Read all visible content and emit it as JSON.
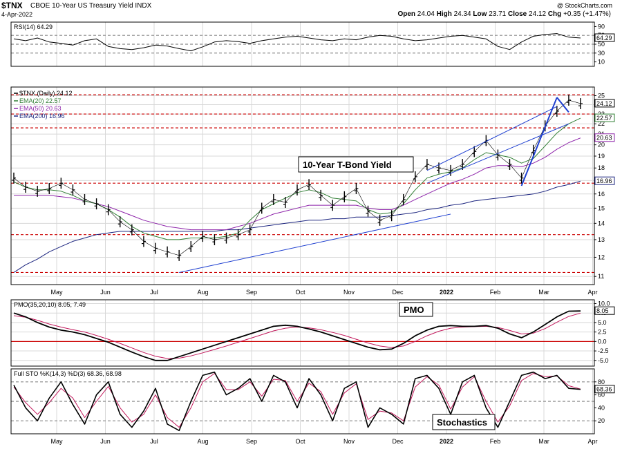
{
  "header": {
    "symbol": "$TNX",
    "name": "CBOE 10-Year US Treasury Yield INDX",
    "date": "4-Apr-2022",
    "copyright": "@ StockCharts.com",
    "open_label": "Open",
    "open": "24.04",
    "high_label": "High",
    "high": "24.34",
    "low_label": "Low",
    "low": "23.71",
    "close_label": "Close",
    "close": "24.12",
    "chg_label": "Chg",
    "chg": "+0.35 (+1.47%)"
  },
  "colors": {
    "rsi": "#000000",
    "price": "#000000",
    "ema20": "#2e7d32",
    "ema50": "#8e24aa",
    "ema200": "#1a237e",
    "trend": "#1e3fd0",
    "hline_red": "#cc0000",
    "pmo_signal": "#c2185b",
    "sto_d": "#c2185b",
    "grid": "#d8d8d8"
  },
  "chart_data": [
    {
      "type": "line",
      "name": "rsi_panel",
      "legend": "RSI(14) 64.29",
      "value_label": "64.29",
      "ylim": [
        0,
        100
      ],
      "yticks": [
        90,
        70,
        50,
        30,
        10
      ],
      "reference_lines": [
        70,
        50,
        30
      ],
      "series": [
        {
          "values": [
            62,
            58,
            64,
            55,
            52,
            48,
            58,
            62,
            45,
            40,
            38,
            42,
            48,
            46,
            40,
            35,
            44,
            55,
            58,
            56,
            52,
            58,
            62,
            66,
            68,
            64,
            60,
            58,
            62,
            60,
            66,
            70,
            68,
            62,
            58,
            60,
            64,
            68,
            70,
            66,
            62,
            45,
            38,
            55,
            68,
            72,
            74,
            66,
            64
          ]
        }
      ]
    },
    {
      "type": "line",
      "name": "price_panel",
      "title": "10-Year T-Bond Yield",
      "legend": [
        {
          "label": "$TNX (Daily) 24.12",
          "color": "#000000"
        },
        {
          "label": "EMA(20) 22.57",
          "color": "#2e7d32"
        },
        {
          "label": "EMA(50) 20.63",
          "color": "#8e24aa"
        },
        {
          "label": "EMA(200) 16.96",
          "color": "#1a237e"
        }
      ],
      "value_labels": [
        "24.12",
        "22.57",
        "20.63",
        "16.96"
      ],
      "ylim": [
        10.6,
        26
      ],
      "yticks": [
        25,
        24,
        23,
        22,
        21,
        20,
        19,
        18,
        17,
        16,
        15,
        14,
        13,
        12,
        11
      ],
      "y_scale": "log",
      "x_ticks": [
        "May",
        "Jun",
        "Jul",
        "Aug",
        "Sep",
        "Oct",
        "Nov",
        "Dec",
        "2022",
        "Feb",
        "Mar",
        "Apr"
      ],
      "horizontal_lines": [
        25.1,
        23.0,
        21.6,
        16.8,
        13.3,
        11.2
      ],
      "series": [
        {
          "name": "$TNX",
          "values": [
            17.2,
            16.5,
            16.2,
            16.4,
            16.8,
            16.3,
            15.6,
            15.3,
            14.9,
            14.1,
            13.6,
            12.9,
            12.5,
            12.3,
            12.1,
            12.6,
            13.2,
            13.0,
            13.1,
            13.3,
            13.6,
            15.0,
            15.6,
            15.4,
            16.3,
            16.7,
            15.9,
            15.2,
            15.8,
            16.4,
            14.8,
            14.2,
            14.5,
            15.6,
            17.3,
            18.3,
            18.0,
            17.8,
            18.3,
            19.4,
            20.4,
            19.1,
            18.3,
            17.2,
            19.5,
            21.8,
            23.3,
            24.5,
            24.12
          ]
        },
        {
          "name": "EMA(20)",
          "values": [
            16.9,
            16.5,
            16.3,
            16.3,
            16.2,
            15.9,
            15.5,
            15.3,
            14.9,
            14.4,
            13.8,
            13.4,
            13.2,
            13.0,
            13.0,
            13.1,
            13.1,
            13.1,
            13.2,
            13.4,
            14.2,
            14.9,
            15.3,
            15.7,
            16.1,
            16.3,
            16.1,
            15.7,
            15.6,
            15.5,
            14.9,
            14.6,
            14.7,
            15.3,
            16.3,
            17.2,
            17.5,
            17.7,
            18.0,
            18.7,
            19.3,
            19.1,
            18.9,
            18.4,
            18.8,
            19.9,
            21.1,
            22.0,
            22.57
          ]
        },
        {
          "name": "EMA(50)",
          "values": [
            15.9,
            15.9,
            15.9,
            15.9,
            15.8,
            15.7,
            15.5,
            15.3,
            15.1,
            14.8,
            14.5,
            14.2,
            14.0,
            13.8,
            13.7,
            13.6,
            13.6,
            13.6,
            13.6,
            13.8,
            14.0,
            14.3,
            14.6,
            14.8,
            15.0,
            15.2,
            15.2,
            15.2,
            15.2,
            15.2,
            15.0,
            14.9,
            14.9,
            15.2,
            15.6,
            16.0,
            16.4,
            16.8,
            17.1,
            17.5,
            18.0,
            18.2,
            18.2,
            18.1,
            18.4,
            18.9,
            19.6,
            20.2,
            20.63
          ]
        },
        {
          "name": "EMA(200)",
          "values": [
            11.2,
            11.6,
            11.9,
            12.3,
            12.6,
            12.9,
            13.1,
            13.3,
            13.4,
            13.5,
            13.5,
            13.5,
            13.5,
            13.5,
            13.5,
            13.5,
            13.5,
            13.5,
            13.6,
            13.6,
            13.7,
            13.8,
            13.9,
            14.0,
            14.1,
            14.2,
            14.2,
            14.3,
            14.3,
            14.4,
            14.4,
            14.4,
            14.5,
            14.6,
            14.7,
            14.9,
            15.0,
            15.2,
            15.3,
            15.5,
            15.6,
            15.7,
            15.8,
            15.9,
            16.0,
            16.2,
            16.5,
            16.7,
            16.96
          ]
        }
      ],
      "trend_lines": [
        {
          "from": [
            14,
            11.2
          ],
          "to": [
            37,
            14.6
          ]
        },
        {
          "from": [
            35,
            17.8
          ],
          "to": [
            46,
            23.8
          ]
        },
        {
          "from": [
            35,
            16.8
          ],
          "to": [
            47,
            22.0
          ]
        },
        {
          "from": [
            43,
            16.6
          ],
          "to": [
            46,
            24.8
          ]
        },
        {
          "from": [
            46,
            24.8
          ],
          "to": [
            47,
            23.2
          ]
        }
      ]
    },
    {
      "type": "line",
      "name": "pmo_panel",
      "title": "PMO",
      "legend": "PMO(35,20,10) 8.05, 7.49",
      "value_label": "8.05",
      "ylim": [
        -6.5,
        11
      ],
      "yticks": [
        10.0,
        7.5,
        5.0,
        2.5,
        0.0,
        -2.5,
        -5.0
      ],
      "zero_line": 0,
      "series": [
        {
          "name": "PMO",
          "values": [
            7.5,
            6.5,
            5.0,
            3.8,
            3.0,
            2.5,
            1.8,
            0.8,
            -0.2,
            -1.5,
            -2.8,
            -4.0,
            -5.0,
            -5.0,
            -4.0,
            -3.0,
            -2.0,
            -1.0,
            0.0,
            1.0,
            2.0,
            3.0,
            4.0,
            4.3,
            4.0,
            3.3,
            2.5,
            1.5,
            0.5,
            -0.5,
            -1.5,
            -2.2,
            -2.0,
            -0.5,
            1.5,
            3.0,
            4.0,
            4.2,
            4.0,
            4.0,
            4.2,
            3.5,
            2.0,
            1.0,
            2.5,
            4.5,
            6.5,
            8.0,
            8.05
          ]
        },
        {
          "name": "Signal",
          "values": [
            6.8,
            6.4,
            5.6,
            4.6,
            3.8,
            3.1,
            2.5,
            1.6,
            0.6,
            -0.5,
            -1.7,
            -2.9,
            -3.9,
            -4.5,
            -4.4,
            -3.8,
            -3.0,
            -2.1,
            -1.2,
            -0.2,
            0.8,
            1.8,
            2.8,
            3.5,
            3.8,
            3.6,
            3.1,
            2.4,
            1.6,
            0.6,
            -0.4,
            -1.2,
            -1.6,
            -1.2,
            0.0,
            1.5,
            2.7,
            3.5,
            3.8,
            3.9,
            4.0,
            3.7,
            2.9,
            2.0,
            2.2,
            3.4,
            5.1,
            6.6,
            7.49
          ]
        }
      ]
    },
    {
      "type": "line",
      "name": "stochastics_panel",
      "title": "Stochastics",
      "legend": "Full STO %K(14,3) %D(3) 68.36, 68.98",
      "value_label": "68.36",
      "ylim": [
        0,
        100
      ],
      "yticks": [
        80,
        60,
        40,
        20
      ],
      "reference_lines": [
        80,
        50,
        20
      ],
      "series": [
        {
          "name": "%K",
          "values": [
            75,
            40,
            20,
            55,
            80,
            45,
            15,
            60,
            80,
            30,
            10,
            35,
            70,
            15,
            5,
            50,
            90,
            95,
            60,
            70,
            85,
            50,
            90,
            80,
            40,
            85,
            60,
            20,
            70,
            80,
            10,
            40,
            30,
            15,
            85,
            90,
            70,
            30,
            80,
            90,
            40,
            10,
            50,
            90,
            95,
            85,
            90,
            70,
            68.36
          ]
        },
        {
          "name": "%D",
          "values": [
            72,
            48,
            30,
            48,
            70,
            55,
            25,
            50,
            73,
            40,
            18,
            30,
            60,
            25,
            10,
            40,
            80,
            93,
            68,
            68,
            80,
            58,
            84,
            82,
            50,
            78,
            65,
            30,
            63,
            77,
            22,
            35,
            32,
            20,
            72,
            88,
            75,
            38,
            72,
            88,
            50,
            18,
            43,
            82,
            93,
            88,
            89,
            74,
            68.98
          ]
        }
      ]
    }
  ]
}
